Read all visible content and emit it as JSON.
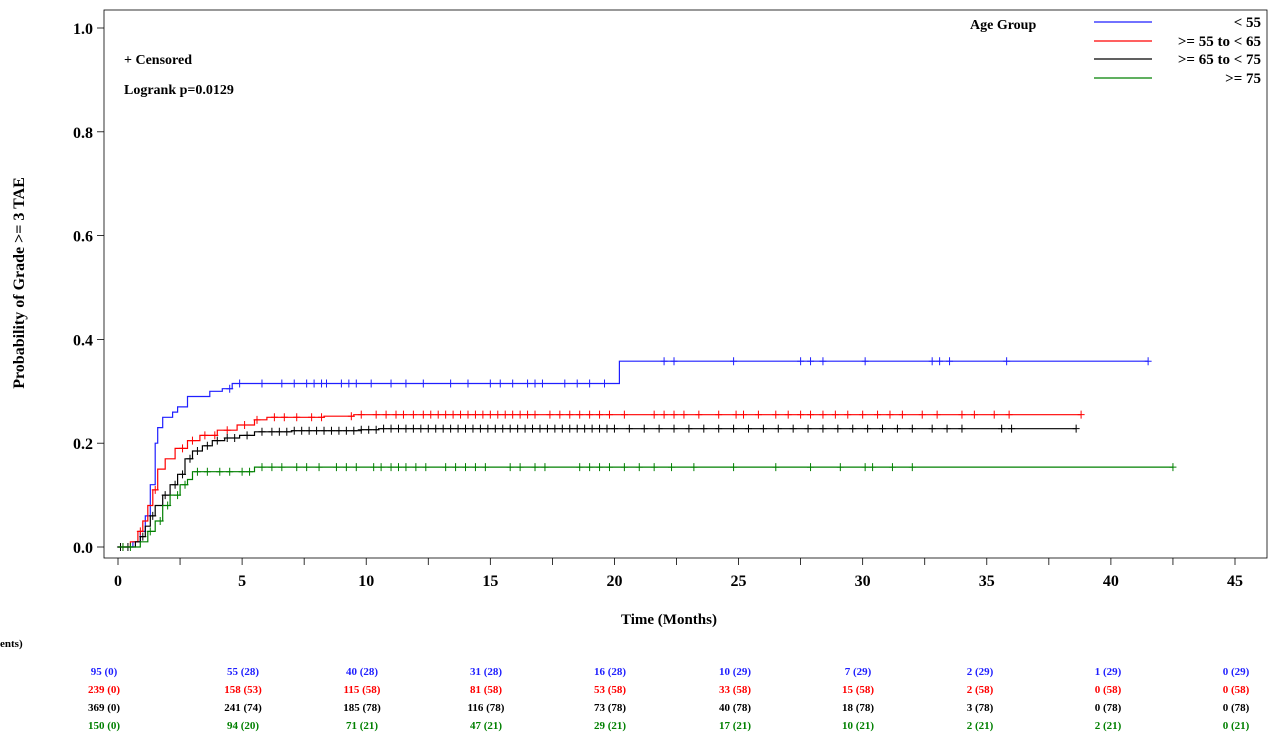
{
  "chart_data": {
    "type": "line",
    "subtype": "kaplan-meier-cumulative-incidence",
    "ylabel": "Probability of Grade >= 3 TAE",
    "xlabel": "Time (Months)",
    "xlim": [
      0,
      45
    ],
    "ylim": [
      0,
      1.0
    ],
    "x_ticks": [
      "0",
      "5",
      "10",
      "15",
      "20",
      "25",
      "30",
      "35",
      "40",
      "45"
    ],
    "x_tick_values": [
      0,
      5,
      10,
      15,
      20,
      25,
      30,
      35,
      40,
      45
    ],
    "y_ticks": [
      "0.0",
      "0.2",
      "0.4",
      "0.6",
      "0.8",
      "1.0"
    ],
    "y_tick_values": [
      0,
      0.2,
      0.4,
      0.6,
      0.8,
      1.0
    ],
    "grid": false,
    "annotations": {
      "censored": "+ Censored",
      "logrank": "Logrank p=0.0129"
    },
    "legend": {
      "title": "Age Group",
      "placement": "top-right",
      "entries": [
        "< 55",
        ">= 55 to < 65",
        ">= 65 to < 75",
        ">= 75"
      ]
    },
    "series": [
      {
        "name": "< 55",
        "color": "#1f1fff",
        "steps": [
          [
            0,
            0
          ],
          [
            0.6,
            0.01
          ],
          [
            0.9,
            0.03
          ],
          [
            1.1,
            0.06
          ],
          [
            1.3,
            0.12
          ],
          [
            1.5,
            0.2
          ],
          [
            1.6,
            0.23
          ],
          [
            1.8,
            0.25
          ],
          [
            2.2,
            0.26
          ],
          [
            2.4,
            0.27
          ],
          [
            2.8,
            0.29
          ],
          [
            3.7,
            0.3
          ],
          [
            4.2,
            0.305
          ],
          [
            4.6,
            0.315
          ],
          [
            20.2,
            0.315
          ],
          [
            20.2,
            0.358
          ],
          [
            41.5,
            0.358
          ]
        ],
        "censor_x": [
          4.5,
          4.9,
          5.8,
          6.6,
          7.1,
          7.6,
          7.9,
          8.2,
          8.4,
          9.0,
          9.3,
          9.6,
          10.2,
          11.0,
          11.6,
          12.3,
          13.4,
          14.1,
          15.0,
          15.4,
          15.9,
          16.5,
          16.8,
          17.1,
          18.0,
          18.5,
          19.0,
          19.6,
          22.0,
          22.4,
          24.8,
          27.5,
          27.9,
          28.4,
          30.1,
          32.8,
          33.1,
          33.5,
          35.8,
          41.5
        ]
      },
      {
        "name": ">= 55 to < 65",
        "color": "#ff0000",
        "steps": [
          [
            0,
            0
          ],
          [
            0.5,
            0.01
          ],
          [
            0.8,
            0.03
          ],
          [
            1.0,
            0.05
          ],
          [
            1.2,
            0.08
          ],
          [
            1.4,
            0.11
          ],
          [
            1.6,
            0.15
          ],
          [
            1.9,
            0.17
          ],
          [
            2.3,
            0.19
          ],
          [
            2.8,
            0.205
          ],
          [
            3.3,
            0.215
          ],
          [
            4.0,
            0.225
          ],
          [
            4.8,
            0.235
          ],
          [
            5.5,
            0.245
          ],
          [
            6.0,
            0.25
          ],
          [
            8.3,
            0.252
          ],
          [
            9.5,
            0.255
          ],
          [
            38.8,
            0.255
          ]
        ],
        "censor_x": [
          0.2,
          0.9,
          1.5,
          2.6,
          3.0,
          3.5,
          3.9,
          4.4,
          5.1,
          5.6,
          6.3,
          6.7,
          7.2,
          7.8,
          8.2,
          9.4,
          9.8,
          10.4,
          10.8,
          11.2,
          11.5,
          11.9,
          12.3,
          12.6,
          12.9,
          13.2,
          13.5,
          13.8,
          14.1,
          14.4,
          14.7,
          15.0,
          15.3,
          15.6,
          15.9,
          16.2,
          16.5,
          16.8,
          17.4,
          17.8,
          18.2,
          18.6,
          19.0,
          19.4,
          19.8,
          20.4,
          21.6,
          22.0,
          22.4,
          22.8,
          23.4,
          24.2,
          24.9,
          25.2,
          25.8,
          26.5,
          27.0,
          27.5,
          27.9,
          28.4,
          28.9,
          29.4,
          30.0,
          30.6,
          31.1,
          31.6,
          32.4,
          33.0,
          34.0,
          34.5,
          35.3,
          35.9,
          38.8
        ]
      },
      {
        "name": ">= 65 to < 75",
        "color": "#000000",
        "steps": [
          [
            0,
            0
          ],
          [
            0.7,
            0.01
          ],
          [
            0.9,
            0.02
          ],
          [
            1.1,
            0.04
          ],
          [
            1.3,
            0.06
          ],
          [
            1.5,
            0.08
          ],
          [
            1.8,
            0.1
          ],
          [
            2.1,
            0.12
          ],
          [
            2.4,
            0.14
          ],
          [
            2.7,
            0.17
          ],
          [
            3.0,
            0.185
          ],
          [
            3.4,
            0.195
          ],
          [
            3.8,
            0.205
          ],
          [
            4.3,
            0.21
          ],
          [
            4.9,
            0.215
          ],
          [
            5.5,
            0.222
          ],
          [
            7.0,
            0.224
          ],
          [
            9.8,
            0.226
          ],
          [
            10.5,
            0.228
          ],
          [
            38.6,
            0.228
          ]
        ],
        "censor_x": [
          0.1,
          0.4,
          1.0,
          1.4,
          1.9,
          2.3,
          2.6,
          2.9,
          3.2,
          3.6,
          4.0,
          4.4,
          4.7,
          5.2,
          5.8,
          6.2,
          6.5,
          6.8,
          7.1,
          7.4,
          7.7,
          8.0,
          8.3,
          8.6,
          8.9,
          9.2,
          9.5,
          9.8,
          10.1,
          10.4,
          10.7,
          11.0,
          11.3,
          11.6,
          11.9,
          12.2,
          12.5,
          12.8,
          13.1,
          13.4,
          13.7,
          14.0,
          14.3,
          14.6,
          14.9,
          15.2,
          15.5,
          15.8,
          16.1,
          16.4,
          16.7,
          17.0,
          17.3,
          17.6,
          17.9,
          18.2,
          18.5,
          18.8,
          19.1,
          19.4,
          19.7,
          20.0,
          20.6,
          21.2,
          21.8,
          22.4,
          23.0,
          23.6,
          24.2,
          24.8,
          25.4,
          26.0,
          26.6,
          27.2,
          27.8,
          28.4,
          29.0,
          29.6,
          30.2,
          30.8,
          31.4,
          32.0,
          32.8,
          33.4,
          34.0,
          35.6,
          36.0,
          38.6
        ]
      },
      {
        "name": ">= 75",
        "color": "#008000",
        "steps": [
          [
            0,
            0
          ],
          [
            0.9,
            0.01
          ],
          [
            1.2,
            0.03
          ],
          [
            1.5,
            0.05
          ],
          [
            1.8,
            0.08
          ],
          [
            2.1,
            0.1
          ],
          [
            2.5,
            0.12
          ],
          [
            2.8,
            0.13
          ],
          [
            3.0,
            0.145
          ],
          [
            5.5,
            0.145
          ],
          [
            5.5,
            0.154
          ],
          [
            42.5,
            0.154
          ]
        ],
        "censor_x": [
          0.2,
          0.5,
          1.3,
          1.7,
          2.0,
          2.4,
          2.7,
          3.2,
          3.6,
          4.1,
          4.5,
          5.0,
          5.3,
          5.8,
          6.2,
          6.6,
          7.2,
          7.6,
          8.1,
          8.8,
          9.2,
          9.6,
          10.3,
          10.6,
          11.0,
          11.3,
          11.6,
          12.0,
          12.4,
          13.2,
          13.6,
          14.0,
          14.4,
          14.8,
          15.8,
          16.2,
          16.8,
          17.2,
          18.6,
          19.0,
          19.4,
          19.8,
          20.4,
          21.0,
          21.6,
          22.3,
          23.2,
          24.8,
          26.5,
          27.9,
          29.1,
          30.1,
          30.4,
          31.2,
          32.0,
          42.5
        ]
      }
    ],
    "at_risk": {
      "header": "ents)",
      "rows": [
        {
          "name": "< 55",
          "color": "#1f1fff",
          "values": [
            "95 (0)",
            "55 (28)",
            "40 (28)",
            "31 (28)",
            "16 (28)",
            "10 (29)",
            "7 (29)",
            "2 (29)",
            "1 (29)",
            "0 (29)"
          ]
        },
        {
          "name": ">= 55 to < 65",
          "color": "#ff0000",
          "values": [
            "239 (0)",
            "158 (53)",
            "115 (58)",
            "81 (58)",
            "53 (58)",
            "33 (58)",
            "15 (58)",
            "2 (58)",
            "0 (58)",
            "0 (58)"
          ]
        },
        {
          "name": ">= 65 to < 75",
          "color": "#000000",
          "values": [
            "369 (0)",
            "241 (74)",
            "185 (78)",
            "116 (78)",
            "73 (78)",
            "40 (78)",
            "18 (78)",
            "3 (78)",
            "0 (78)",
            "0 (78)"
          ]
        },
        {
          "name": ">= 75",
          "color": "#008000",
          "values": [
            "150 (0)",
            "94 (20)",
            "71 (21)",
            "47 (21)",
            "29 (21)",
            "17 (21)",
            "10 (21)",
            "2 (21)",
            "2 (21)",
            "0 (21)"
          ]
        }
      ]
    }
  }
}
